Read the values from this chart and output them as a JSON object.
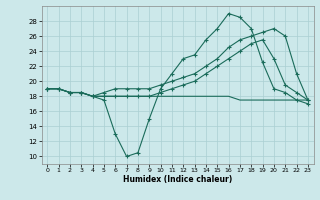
{
  "background_color": "#cce8ea",
  "grid_color": "#aacfd2",
  "line_color": "#1a6b5a",
  "xlabel": "Humidex (Indice chaleur)",
  "xlim": [
    -0.5,
    23.5
  ],
  "ylim": [
    9,
    30
  ],
  "xticks": [
    0,
    1,
    2,
    3,
    4,
    5,
    6,
    7,
    8,
    9,
    10,
    11,
    12,
    13,
    14,
    15,
    16,
    17,
    18,
    19,
    20,
    21,
    22,
    23
  ],
  "yticks": [
    10,
    12,
    14,
    16,
    18,
    20,
    22,
    24,
    26,
    28
  ],
  "curve1_x": [
    0,
    1,
    2,
    3,
    4,
    5,
    6,
    7,
    8,
    9,
    10,
    11,
    12,
    13,
    14,
    15,
    16,
    17,
    18,
    19,
    20,
    21,
    22,
    23
  ],
  "curve1_y": [
    19.0,
    19.0,
    18.5,
    18.5,
    18.0,
    17.5,
    13.0,
    10.0,
    10.5,
    15.0,
    19.0,
    21.0,
    23.0,
    23.5,
    25.5,
    27.0,
    29.0,
    28.5,
    27.0,
    22.5,
    19.0,
    18.5,
    17.5,
    17.0
  ],
  "curve2_x": [
    0,
    1,
    2,
    3,
    4,
    5,
    6,
    7,
    8,
    9,
    10,
    11,
    12,
    13,
    14,
    15,
    16,
    17,
    18,
    19,
    20,
    21,
    22,
    23
  ],
  "curve2_y": [
    19.0,
    19.0,
    18.5,
    18.5,
    18.0,
    18.5,
    19.0,
    19.0,
    19.0,
    19.0,
    19.5,
    20.0,
    20.5,
    21.0,
    22.0,
    23.0,
    24.5,
    25.5,
    26.0,
    26.5,
    27.0,
    26.0,
    21.0,
    17.5
  ],
  "curve3_x": [
    0,
    1,
    2,
    3,
    4,
    5,
    6,
    7,
    8,
    9,
    10,
    11,
    12,
    13,
    14,
    15,
    16,
    17,
    18,
    19,
    20,
    21,
    22,
    23
  ],
  "curve3_y": [
    19.0,
    19.0,
    18.5,
    18.5,
    18.0,
    18.0,
    18.0,
    18.0,
    18.0,
    18.0,
    18.0,
    18.0,
    18.0,
    18.0,
    18.0,
    18.0,
    18.0,
    17.5,
    17.5,
    17.5,
    17.5,
    17.5,
    17.5,
    17.5
  ],
  "curve4_x": [
    0,
    1,
    2,
    3,
    4,
    5,
    6,
    7,
    8,
    9,
    10,
    11,
    12,
    13,
    14,
    15,
    16,
    17,
    18,
    19,
    20,
    21,
    22,
    23
  ],
  "curve4_y": [
    19.0,
    19.0,
    18.5,
    18.5,
    18.0,
    18.0,
    18.0,
    18.0,
    18.0,
    18.0,
    18.5,
    19.0,
    19.5,
    20.0,
    21.0,
    22.0,
    23.0,
    24.0,
    25.0,
    25.5,
    23.0,
    19.5,
    18.5,
    17.5
  ]
}
